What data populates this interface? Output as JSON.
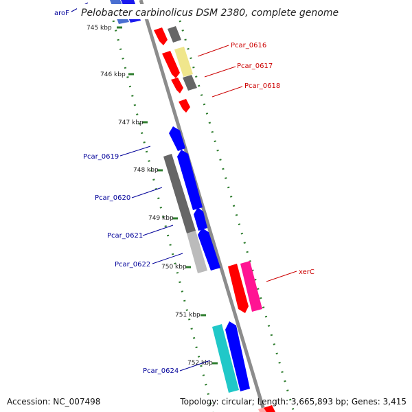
{
  "title": "Pelobacter carbinolicus DSM 2380, complete genome",
  "footer": {
    "accession": "Accession: NC_007498",
    "summary": "Topology: circular; Length: 3,665,893 bp; Genes: 3,415"
  },
  "ruler_ticks": [
    "745 kbp",
    "746 kbp",
    "747 kbp",
    "748 kbp",
    "749 kbp",
    "750 kbp",
    "751 kbp",
    "752 kbp"
  ],
  "gene_labels": [
    {
      "text": "aroF",
      "strand": "reverse"
    },
    {
      "text": "Pcar_0616",
      "strand": "forward"
    },
    {
      "text": "Pcar_0617",
      "strand": "forward"
    },
    {
      "text": "Pcar_0618",
      "strand": "forward"
    },
    {
      "text": "Pcar_0619",
      "strand": "reverse"
    },
    {
      "text": "Pcar_0620",
      "strand": "reverse"
    },
    {
      "text": "Pcar_0621",
      "strand": "reverse"
    },
    {
      "text": "Pcar_0622",
      "strand": "reverse"
    },
    {
      "text": "xerC",
      "strand": "forward"
    },
    {
      "text": "Pcar_0624",
      "strand": "reverse"
    }
  ],
  "colors": {
    "forward_cds": "#ff0000",
    "reverse_cds": "#0000ff",
    "forward_label": "#cc0000",
    "reverse_label": "#000099",
    "backbone": "#8c8c8c",
    "tick_green": "#2e7d2e",
    "xerC_partner": "#ff1493",
    "pale_yellow": "#f0e68c",
    "dark_gray": "#666666",
    "light_gray": "#bbbbbb",
    "cyan": "#20c8c8"
  }
}
